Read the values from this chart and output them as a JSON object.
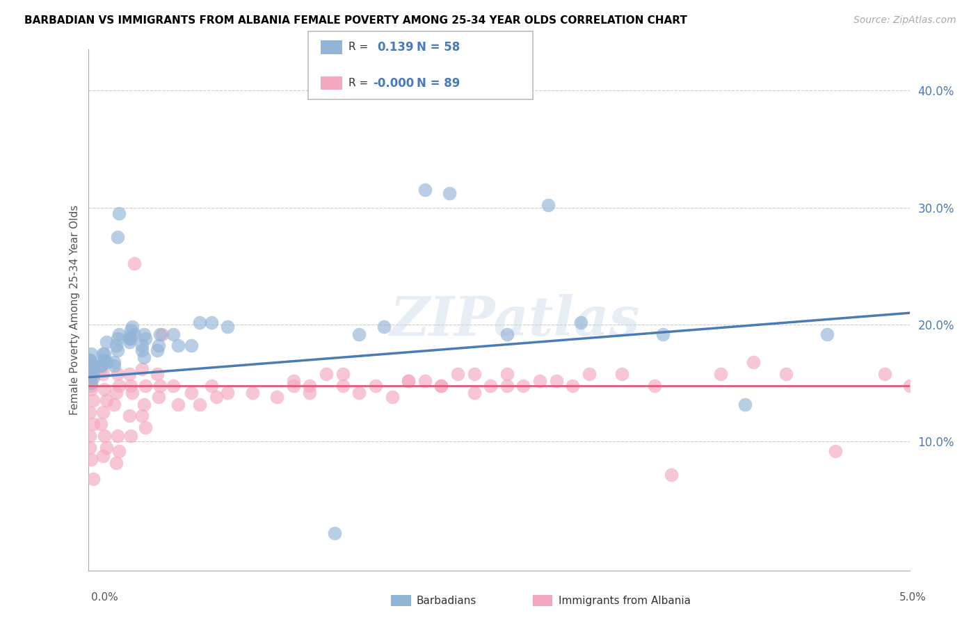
{
  "title": "BARBADIAN VS IMMIGRANTS FROM ALBANIA FEMALE POVERTY AMONG 25-34 YEAR OLDS CORRELATION CHART",
  "source": "Source: ZipAtlas.com",
  "ylabel": "Female Poverty Among 25-34 Year Olds",
  "xlim": [
    0.0,
    0.05
  ],
  "ylim": [
    -0.01,
    0.435
  ],
  "y_ticks": [
    0.1,
    0.2,
    0.3,
    0.4
  ],
  "y_tick_labels": [
    "10.0%",
    "20.0%",
    "30.0%",
    "40.0%"
  ],
  "barbadians_label": "Barbadians",
  "albania_label": "Immigrants from Albania",
  "blue_color": "#92b4d7",
  "pink_color": "#f4a8bf",
  "blue_line_color": "#4a7bb7",
  "pink_line_color": "#e05a7a",
  "blue_trend_x": [
    0.0,
    0.05
  ],
  "blue_trend_y": [
    0.155,
    0.21
  ],
  "pink_trend_x": [
    0.0,
    0.05
  ],
  "pink_trend_y": [
    0.148,
    0.148
  ],
  "blue_r": "0.139",
  "blue_n": "58",
  "pink_r": "-0.000",
  "pink_n": "89",
  "blue_scatter_x": [
    0.0002,
    0.0003,
    0.0001,
    0.0002,
    0.0001,
    0.0003,
    0.0002,
    0.0001,
    0.0002,
    0.0003,
    0.0008,
    0.0009,
    0.001,
    0.0011,
    0.0009,
    0.0008,
    0.001,
    0.0011,
    0.0018,
    0.0019,
    0.0016,
    0.0018,
    0.0017,
    0.0016,
    0.0019,
    0.0018,
    0.0025,
    0.0026,
    0.0027,
    0.0025,
    0.0026,
    0.0028,
    0.0025,
    0.0033,
    0.0034,
    0.0035,
    0.0033,
    0.0034,
    0.0042,
    0.0043,
    0.0044,
    0.0052,
    0.0055,
    0.0063,
    0.0068,
    0.0075,
    0.0085,
    0.015,
    0.0165,
    0.018,
    0.0205,
    0.022,
    0.0255,
    0.028,
    0.03,
    0.035,
    0.04,
    0.045
  ],
  "blue_scatter_y": [
    0.165,
    0.155,
    0.17,
    0.175,
    0.16,
    0.165,
    0.15,
    0.17,
    0.165,
    0.16,
    0.165,
    0.17,
    0.175,
    0.185,
    0.175,
    0.165,
    0.17,
    0.168,
    0.275,
    0.295,
    0.165,
    0.178,
    0.182,
    0.168,
    0.192,
    0.188,
    0.19,
    0.195,
    0.198,
    0.185,
    0.188,
    0.192,
    0.188,
    0.182,
    0.192,
    0.188,
    0.178,
    0.172,
    0.178,
    0.182,
    0.192,
    0.192,
    0.182,
    0.182,
    0.202,
    0.202,
    0.198,
    0.022,
    0.192,
    0.198,
    0.315,
    0.312,
    0.192,
    0.302,
    0.202,
    0.192,
    0.132,
    0.192
  ],
  "pink_scatter_x": [
    0.0002,
    0.0001,
    0.0003,
    0.0001,
    0.0002,
    0.0003,
    0.0001,
    0.0002,
    0.0003,
    0.0002,
    0.0001,
    0.0003,
    0.0008,
    0.0009,
    0.001,
    0.0011,
    0.0009,
    0.0008,
    0.001,
    0.0011,
    0.0009,
    0.0018,
    0.0019,
    0.0017,
    0.0016,
    0.0018,
    0.0019,
    0.0017,
    0.0025,
    0.0026,
    0.0027,
    0.0028,
    0.0025,
    0.0026,
    0.0033,
    0.0035,
    0.0034,
    0.0033,
    0.0035,
    0.0042,
    0.0044,
    0.0043,
    0.0045,
    0.0052,
    0.0055,
    0.0063,
    0.0068,
    0.0075,
    0.0078,
    0.0085,
    0.01,
    0.0115,
    0.0125,
    0.0135,
    0.0145,
    0.0155,
    0.0165,
    0.0185,
    0.0195,
    0.0205,
    0.0215,
    0.0225,
    0.0235,
    0.0245,
    0.0255,
    0.0265,
    0.0285,
    0.0305,
    0.0325,
    0.0345,
    0.0355,
    0.0385,
    0.0405,
    0.0425,
    0.0455,
    0.0485,
    0.05,
    0.0125,
    0.0135,
    0.0155,
    0.0175,
    0.0195,
    0.0215,
    0.0235,
    0.0255,
    0.0275,
    0.0295
  ],
  "pink_scatter_y": [
    0.155,
    0.125,
    0.115,
    0.105,
    0.145,
    0.135,
    0.095,
    0.085,
    0.158,
    0.148,
    0.162,
    0.068,
    0.162,
    0.158,
    0.145,
    0.135,
    0.125,
    0.115,
    0.105,
    0.095,
    0.088,
    0.158,
    0.148,
    0.142,
    0.132,
    0.105,
    0.092,
    0.082,
    0.158,
    0.148,
    0.142,
    0.252,
    0.122,
    0.105,
    0.162,
    0.148,
    0.132,
    0.122,
    0.112,
    0.158,
    0.148,
    0.138,
    0.192,
    0.148,
    0.132,
    0.142,
    0.132,
    0.148,
    0.138,
    0.142,
    0.142,
    0.138,
    0.148,
    0.142,
    0.158,
    0.148,
    0.142,
    0.138,
    0.152,
    0.152,
    0.148,
    0.158,
    0.142,
    0.148,
    0.158,
    0.148,
    0.152,
    0.158,
    0.158,
    0.148,
    0.072,
    0.158,
    0.168,
    0.158,
    0.092,
    0.158,
    0.148,
    0.152,
    0.148,
    0.158,
    0.148,
    0.152,
    0.148,
    0.158,
    0.148,
    0.152,
    0.148
  ]
}
